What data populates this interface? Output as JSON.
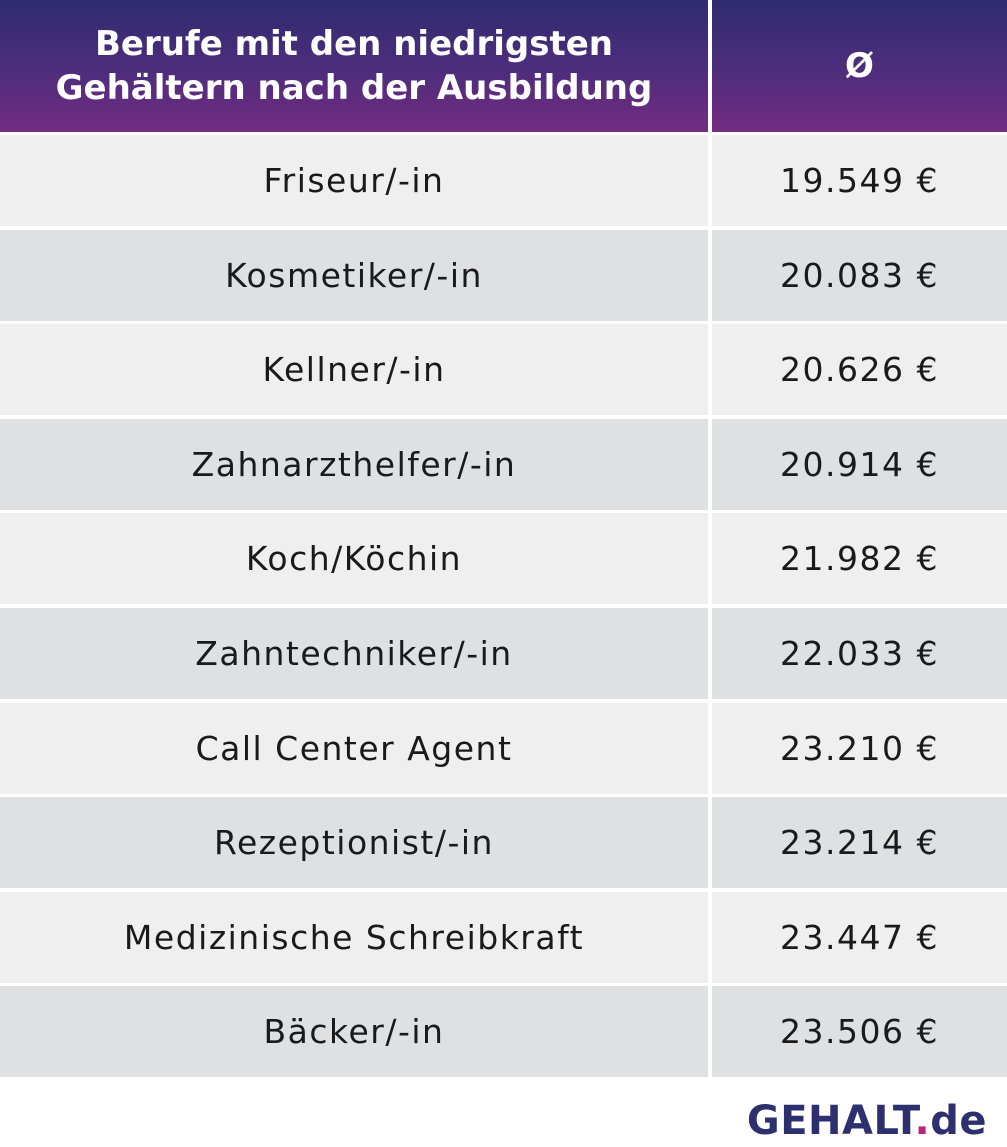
{
  "table": {
    "header": {
      "name_line1": "Berufe mit den niedrigsten",
      "name_line2": "Gehältern nach der Ausbildung",
      "avg": "Ø"
    },
    "rows": [
      {
        "name": "Friseur/-in",
        "value": "19.549 €"
      },
      {
        "name": "Kosmetiker/-in",
        "value": "20.083 €"
      },
      {
        "name": "Kellner/-in",
        "value": "20.626 €"
      },
      {
        "name": "Zahnarzthelfer/-in",
        "value": "20.914 €"
      },
      {
        "name": "Koch/Köchin",
        "value": "21.982 €"
      },
      {
        "name": "Zahntechniker/-in",
        "value": "22.033 €"
      },
      {
        "name": "Call Center Agent",
        "value": "23.210 €"
      },
      {
        "name": "Rezeptionist/-in",
        "value": "23.214 €"
      },
      {
        "name": "Medizinische Schreibkraft",
        "value": "23.447 €"
      },
      {
        "name": "Bäcker/-in",
        "value": "23.506 €"
      }
    ]
  },
  "logo": {
    "text_main": "GEHALT",
    "text_dot": ".",
    "text_tld": "de"
  },
  "colors": {
    "header_top": "#2f2c6e",
    "header_bottom": "#732c80",
    "row_light": "#efefef",
    "row_dark": "#dfe0e2",
    "logo_navy": "#2e2f6e",
    "logo_accent": "#b8237d"
  }
}
